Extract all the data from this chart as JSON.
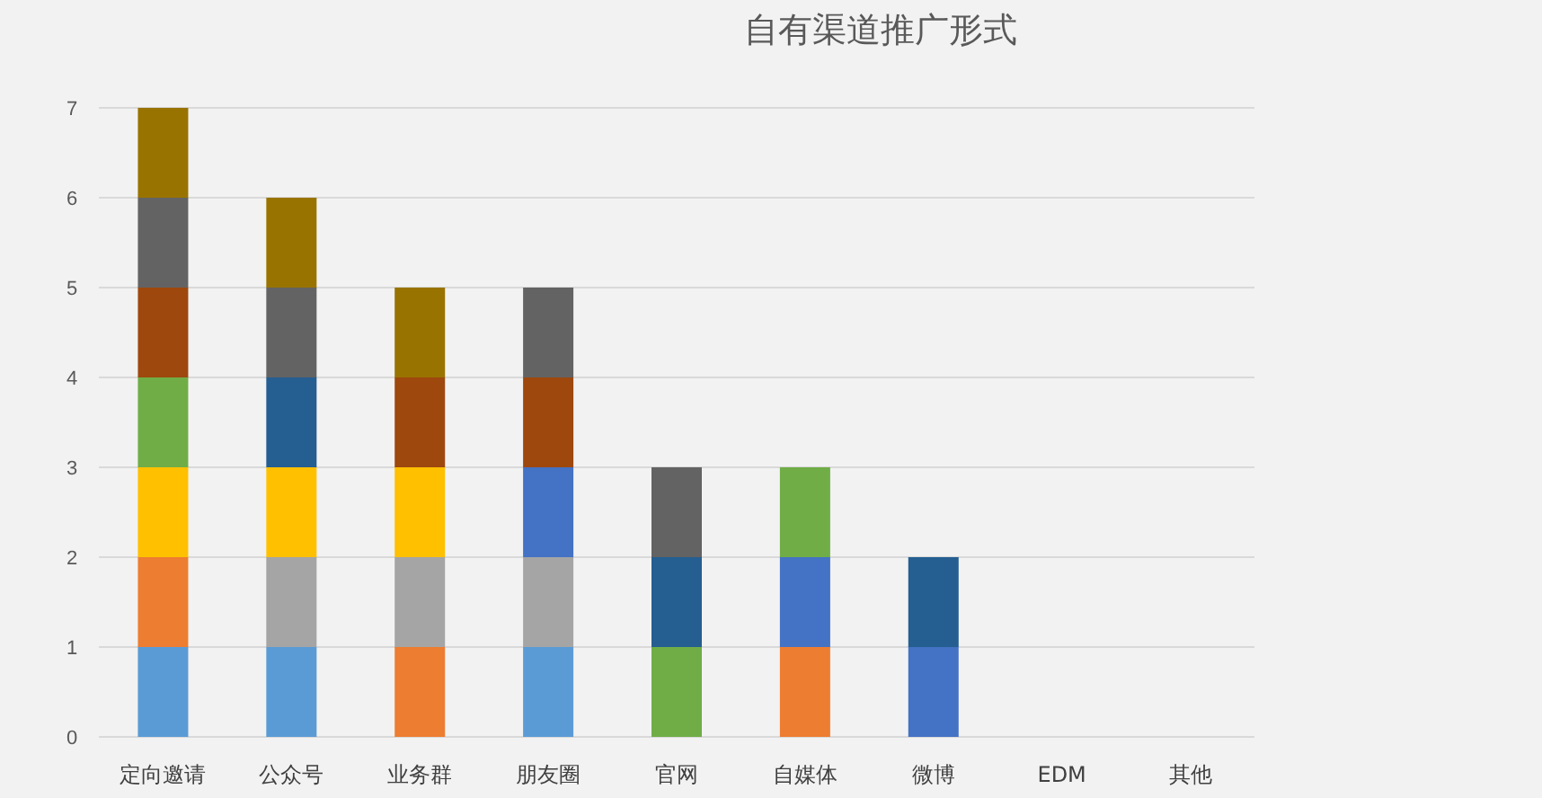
{
  "chart_data": {
    "type": "bar",
    "title": "自有渠道推广形式",
    "stacked": true,
    "grid": "y",
    "categories": [
      "定向邀请",
      "公众号",
      "业务群",
      "朋友圈",
      "官网",
      "自媒体",
      "微博",
      "EDM",
      "其他"
    ],
    "ylim": [
      0,
      7
    ],
    "yticks": [
      0,
      1,
      2,
      3,
      4,
      5,
      6,
      7
    ],
    "series": [
      {
        "color": "#5b9bd5",
        "values": [
          1,
          1,
          0,
          1,
          0,
          0,
          0,
          0,
          0
        ]
      },
      {
        "color": "#ed7d31",
        "values": [
          1,
          0,
          1,
          0,
          0,
          1,
          0,
          0,
          0
        ]
      },
      {
        "color": "#a5a5a5",
        "values": [
          0,
          1,
          1,
          1,
          0,
          0,
          0,
          0,
          0
        ]
      },
      {
        "color": "#ffc000",
        "values": [
          1,
          1,
          1,
          0,
          0,
          0,
          0,
          0,
          0
        ]
      },
      {
        "color": "#4472c4",
        "values": [
          0,
          0,
          0,
          1,
          0,
          1,
          1,
          0,
          0
        ]
      },
      {
        "color": "#70ad47",
        "values": [
          1,
          0,
          0,
          0,
          1,
          1,
          0,
          0,
          0
        ]
      },
      {
        "color": "#255e91",
        "values": [
          0,
          1,
          0,
          0,
          1,
          0,
          1,
          0,
          0
        ]
      },
      {
        "color": "#9e480e",
        "values": [
          1,
          0,
          1,
          1,
          0,
          0,
          0,
          0,
          0
        ]
      },
      {
        "color": "#636363",
        "values": [
          1,
          1,
          0,
          1,
          1,
          0,
          0,
          0,
          0
        ]
      },
      {
        "color": "#997300",
        "values": [
          1,
          1,
          1,
          0,
          0,
          0,
          0,
          0,
          0
        ]
      }
    ]
  }
}
